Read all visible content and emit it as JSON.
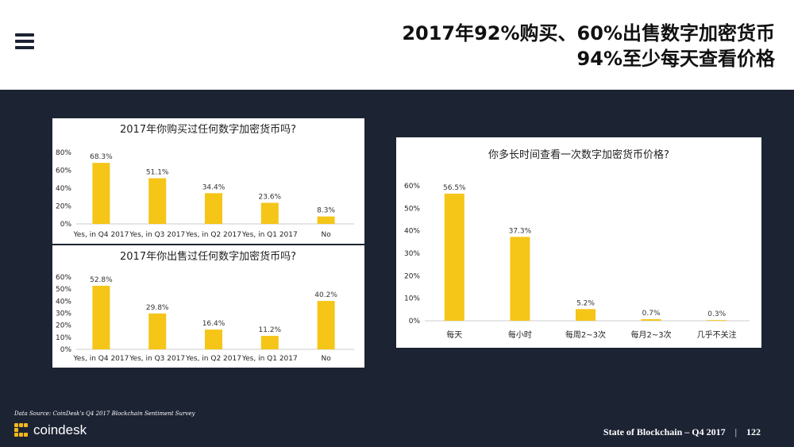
{
  "header": {
    "title_line1": "2017年92%购买、60%出售数字加密货币",
    "title_line2": "94%至少每天查看价格"
  },
  "colors": {
    "bar": "#F5C518",
    "background": "#1C2333",
    "panel": "#FFFFFF"
  },
  "chart_data": [
    {
      "type": "bar",
      "title": "2017年你购买过任何数字加密货币吗?",
      "categories": [
        "Yes, in Q4 2017",
        "Yes, in Q3 2017",
        "Yes, in Q2 2017",
        "Yes, in Q1 2017",
        "No"
      ],
      "values": [
        68.3,
        51.1,
        34.4,
        23.6,
        8.3
      ],
      "value_labels": [
        "68.3%",
        "51.1%",
        "34.4%",
        "23.6%",
        "8.3%"
      ],
      "yticks": [
        "0%",
        "20%",
        "40%",
        "60%",
        "80%"
      ],
      "ylim": [
        0,
        80
      ]
    },
    {
      "type": "bar",
      "title": "2017年你出售过任何数字加密货币吗?",
      "categories": [
        "Yes, in Q4 2017",
        "Yes, in Q3 2017",
        "Yes, in Q2 2017",
        "Yes, in Q1 2017",
        "No"
      ],
      "values": [
        52.8,
        29.8,
        16.4,
        11.2,
        40.2
      ],
      "value_labels": [
        "52.8%",
        "29.8%",
        "16.4%",
        "11.2%",
        "40.2%"
      ],
      "yticks": [
        "0%",
        "10%",
        "20%",
        "30%",
        "40%",
        "50%",
        "60%"
      ],
      "ylim": [
        0,
        60
      ]
    },
    {
      "type": "bar",
      "title": "你多长时间查看一次数字加密货币价格?",
      "categories": [
        "每天",
        "每小时",
        "每周2~3次",
        "每月2~3次",
        "几乎不关注"
      ],
      "values": [
        56.5,
        37.3,
        5.2,
        0.7,
        0.3
      ],
      "value_labels": [
        "56.5%",
        "37.3%",
        "5.2%",
        "0.7%",
        "0.3%"
      ],
      "yticks": [
        "0%",
        "10%",
        "20%",
        "30%",
        "40%",
        "50%",
        "60%"
      ],
      "ylim": [
        0,
        60
      ]
    }
  ],
  "footer": {
    "source": "Data Source: CoinDesk's Q4 2017 Blockchain Sentiment Survey",
    "brand": "coindesk",
    "report": "State of Blockchain – Q4 2017",
    "separator": "|",
    "page": "122"
  }
}
